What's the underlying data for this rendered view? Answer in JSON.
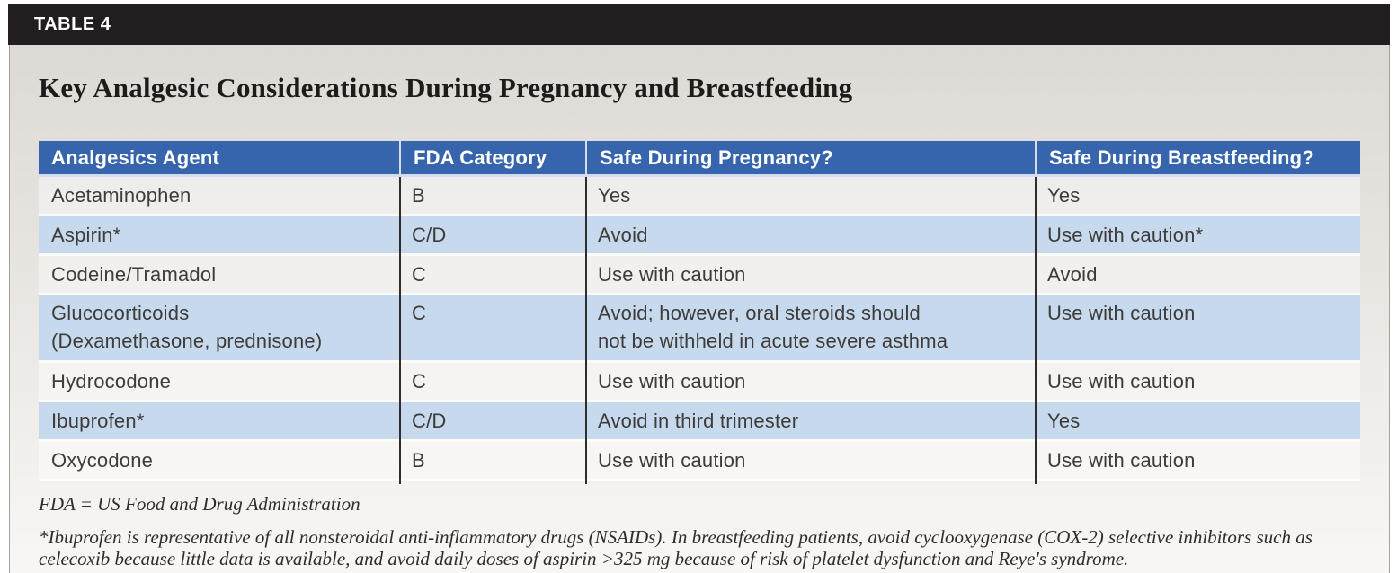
{
  "header": {
    "table_label": "TABLE 4",
    "title": "Key Analgesic Considerations During Pregnancy and Breastfeeding"
  },
  "colors": {
    "label_bar_bg": "#221e1f",
    "header_bg": "#3765ad",
    "row_blue": "#c7d9ed",
    "header_text": "#ffffff",
    "body_text": "#3e3c3b"
  },
  "table": {
    "columns": [
      "Analgesics Agent",
      "FDA Category",
      "Safe During Pregnancy?",
      "Safe During Breastfeeding?"
    ],
    "rows": [
      [
        "Acetaminophen",
        "B",
        "Yes",
        "Yes"
      ],
      [
        "Aspirin*",
        "C/D",
        "Avoid",
        "Use with caution*"
      ],
      [
        "Codeine/Tramadol",
        "C",
        "Use with caution",
        "Avoid"
      ],
      [
        "Glucocorticoids\n(Dexamethasone, prednisone)",
        "C",
        "Avoid; however, oral steroids should\nnot be withheld in acute severe asthma",
        "Use with caution"
      ],
      [
        "Hydrocodone",
        "C",
        "Use with caution",
        "Use with caution"
      ],
      [
        "Ibuprofen*",
        "C/D",
        "Avoid in third trimester",
        "Yes"
      ],
      [
        "Oxycodone",
        "B",
        "Use with caution",
        "Use with caution"
      ]
    ]
  },
  "footnotes": {
    "abbreviation": "FDA = US Food and Drug Administration",
    "note": "*Ibuprofen is representative of all nonsteroidal anti-inflammatory drugs (NSAIDs). In breastfeeding patients, avoid cyclooxygenase (COX-2) selective inhibitors such as celecoxib because little data is available, and avoid daily doses of aspirin >325 mg because of risk of platelet dysfunction and Reye's syndrome."
  }
}
